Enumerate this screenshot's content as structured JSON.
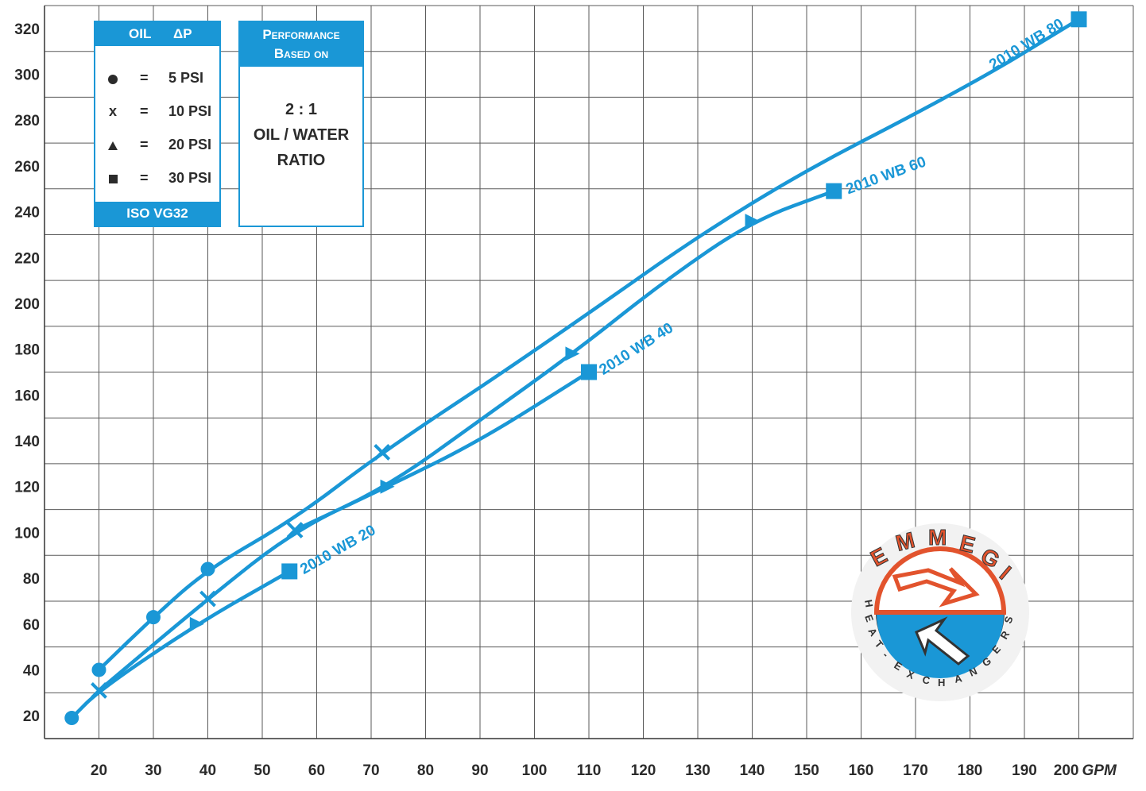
{
  "chart_data": {
    "type": "line",
    "xlabel": "GPM",
    "xlim": [
      10,
      210
    ],
    "ylim": [
      10,
      330
    ],
    "x_ticks": [
      20,
      30,
      40,
      50,
      60,
      70,
      80,
      90,
      100,
      110,
      120,
      130,
      140,
      150,
      160,
      170,
      180,
      190,
      200
    ],
    "y_ticks": [
      20,
      40,
      60,
      80,
      100,
      120,
      140,
      160,
      180,
      200,
      220,
      240,
      260,
      280,
      300,
      320
    ],
    "grid": true,
    "series": [
      {
        "name": "2010 WB 20",
        "line": [
          [
            15,
            19
          ],
          [
            20,
            31
          ],
          [
            38,
            60
          ],
          [
            55,
            83
          ]
        ],
        "points": [
          {
            "x": 15,
            "y": 19,
            "marker": "circle"
          },
          {
            "x": 38,
            "y": 60,
            "marker": "triangle"
          },
          {
            "x": 55,
            "y": 83,
            "marker": "square"
          }
        ]
      },
      {
        "name": "2010 WB 40",
        "line": [
          [
            20,
            31
          ],
          [
            40,
            71
          ],
          [
            56,
            101
          ],
          [
            73,
            120
          ],
          [
            90,
            140
          ],
          [
            110,
            170
          ]
        ],
        "points": [
          {
            "x": 20,
            "y": 31,
            "marker": "x"
          },
          {
            "x": 40,
            "y": 71,
            "marker": "x"
          },
          {
            "x": 56,
            "y": 101,
            "marker": "x"
          },
          {
            "x": 73,
            "y": 120,
            "marker": "triangle"
          },
          {
            "x": 110,
            "y": 170,
            "marker": "square"
          }
        ]
      },
      {
        "name": "2010 WB 60",
        "line": [
          [
            56,
            101
          ],
          [
            73,
            120
          ],
          [
            90,
            149
          ],
          [
            107,
            178
          ],
          [
            124,
            210
          ],
          [
            140,
            236
          ],
          [
            155,
            249
          ]
        ],
        "points": [
          {
            "x": 107,
            "y": 178,
            "marker": "triangle"
          },
          {
            "x": 140,
            "y": 236,
            "marker": "triangle"
          },
          {
            "x": 155,
            "y": 249,
            "marker": "square"
          }
        ]
      },
      {
        "name": "2010 WB 80",
        "line": [
          [
            20,
            40
          ],
          [
            30,
            63
          ],
          [
            40,
            84
          ],
          [
            56,
            106
          ],
          [
            72,
            135
          ],
          [
            100,
            179
          ],
          [
            140,
            246
          ],
          [
            180,
            295
          ],
          [
            200,
            324
          ]
        ],
        "points": [
          {
            "x": 20,
            "y": 40,
            "marker": "circle"
          },
          {
            "x": 30,
            "y": 63,
            "marker": "circle"
          },
          {
            "x": 40,
            "y": 84,
            "marker": "circle"
          },
          {
            "x": 72,
            "y": 135,
            "marker": "x"
          },
          {
            "x": 200,
            "y": 324,
            "marker": "square"
          }
        ]
      }
    ],
    "line_color": "#1a97d6"
  },
  "legend_box": {
    "col_oil": "OIL",
    "col_dp": "ΔP",
    "rows": [
      {
        "symbol": "circle",
        "eq": "=",
        "value": "5 PSI"
      },
      {
        "symbol": "x",
        "eq": "=",
        "value": "10 PSI"
      },
      {
        "symbol": "triangle",
        "eq": "=",
        "value": "20 PSI"
      },
      {
        "symbol": "square",
        "eq": "=",
        "value": "30 PSI"
      }
    ],
    "x_glyph": "x",
    "footer": "ISO VG32"
  },
  "performance_box": {
    "title_line1": "Performance",
    "title_line2": "Based on",
    "ratio": "2 : 1",
    "line2": "OIL / WATER",
    "line3": "RATIO"
  },
  "logo": {
    "brand": "EMMEGI",
    "tagline": "HEAT-EXCHANGERS",
    "colors": {
      "red": "#e2532d",
      "blue": "#1a97d6"
    }
  }
}
